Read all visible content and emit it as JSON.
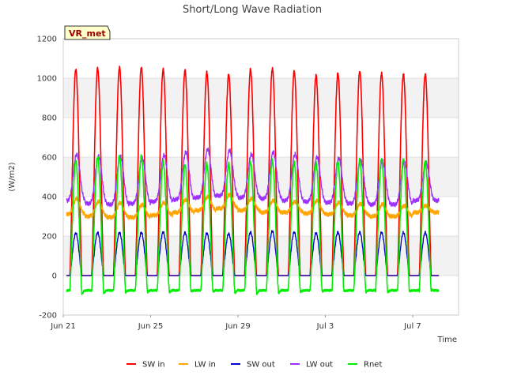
{
  "chart_data": {
    "type": "line",
    "title": "Short/Long Wave Radiation",
    "xlabel": "Time",
    "ylabel": "(W/m2)",
    "badge": "VR_met",
    "x_ticks": [
      {
        "day": 0,
        "label": "Jun 21"
      },
      {
        "day": 4,
        "label": "Jun 25"
      },
      {
        "day": 8,
        "label": "Jun 29"
      },
      {
        "day": 12,
        "label": "Jul 3"
      },
      {
        "day": 16,
        "label": "Jul 7"
      }
    ],
    "xlim": [
      0,
      18.1
    ],
    "ylim": [
      -200,
      1200
    ],
    "y_ticks": [
      -200,
      0,
      200,
      400,
      600,
      800,
      1000,
      1200
    ],
    "grid": true,
    "legend_position": "bottom",
    "series": [
      {
        "key": "sw_in",
        "name": "SW in",
        "color": "#ff0000",
        "daily_peaks": [
          1045,
          1050,
          1055,
          1055,
          1045,
          1040,
          1030,
          1020,
          1045,
          1050,
          1035,
          1015,
          1025,
          1035,
          1025,
          1020,
          1020
        ],
        "night_value": 0
      },
      {
        "key": "lw_in",
        "name": "LW in",
        "color": "#ffa500",
        "daily_peaks": [
          390,
          375,
          370,
          360,
          370,
          385,
          400,
          410,
          390,
          380,
          375,
          380,
          370,
          365,
          360,
          355,
          355
        ],
        "daily_lows": [
          310,
          300,
          295,
          295,
          305,
          320,
          330,
          340,
          330,
          320,
          320,
          315,
          310,
          305,
          300,
          300,
          320
        ]
      },
      {
        "key": "sw_out",
        "name": "SW out",
        "color": "#0000cc",
        "daily_peaks": [
          215,
          218,
          218,
          218,
          220,
          218,
          215,
          212,
          220,
          225,
          220,
          215,
          220,
          220,
          218,
          218,
          218
        ],
        "night_value": 0
      },
      {
        "key": "lw_out",
        "name": "LW out",
        "color": "#9b30ff",
        "daily_peaks": [
          615,
          605,
          605,
          595,
          610,
          625,
          640,
          635,
          615,
          625,
          615,
          600,
          595,
          585,
          580,
          575,
          570
        ],
        "daily_lows": [
          380,
          365,
          360,
          365,
          375,
          385,
          395,
          405,
          395,
          390,
          380,
          375,
          370,
          365,
          360,
          360,
          380
        ]
      },
      {
        "key": "rnet",
        "name": "Rnet",
        "color": "#00ee00",
        "daily_peaks": [
          580,
          600,
          605,
          605,
          575,
          560,
          565,
          565,
          575,
          580,
          575,
          570,
          575,
          585,
          590,
          590,
          580
        ],
        "night_value": -75,
        "daily_min": [
          -95,
          -90,
          -85,
          -85,
          -85,
          -80,
          -80,
          -90,
          -95,
          -90,
          -85,
          -80,
          -80,
          -85,
          -85,
          -80,
          -70
        ]
      }
    ]
  }
}
